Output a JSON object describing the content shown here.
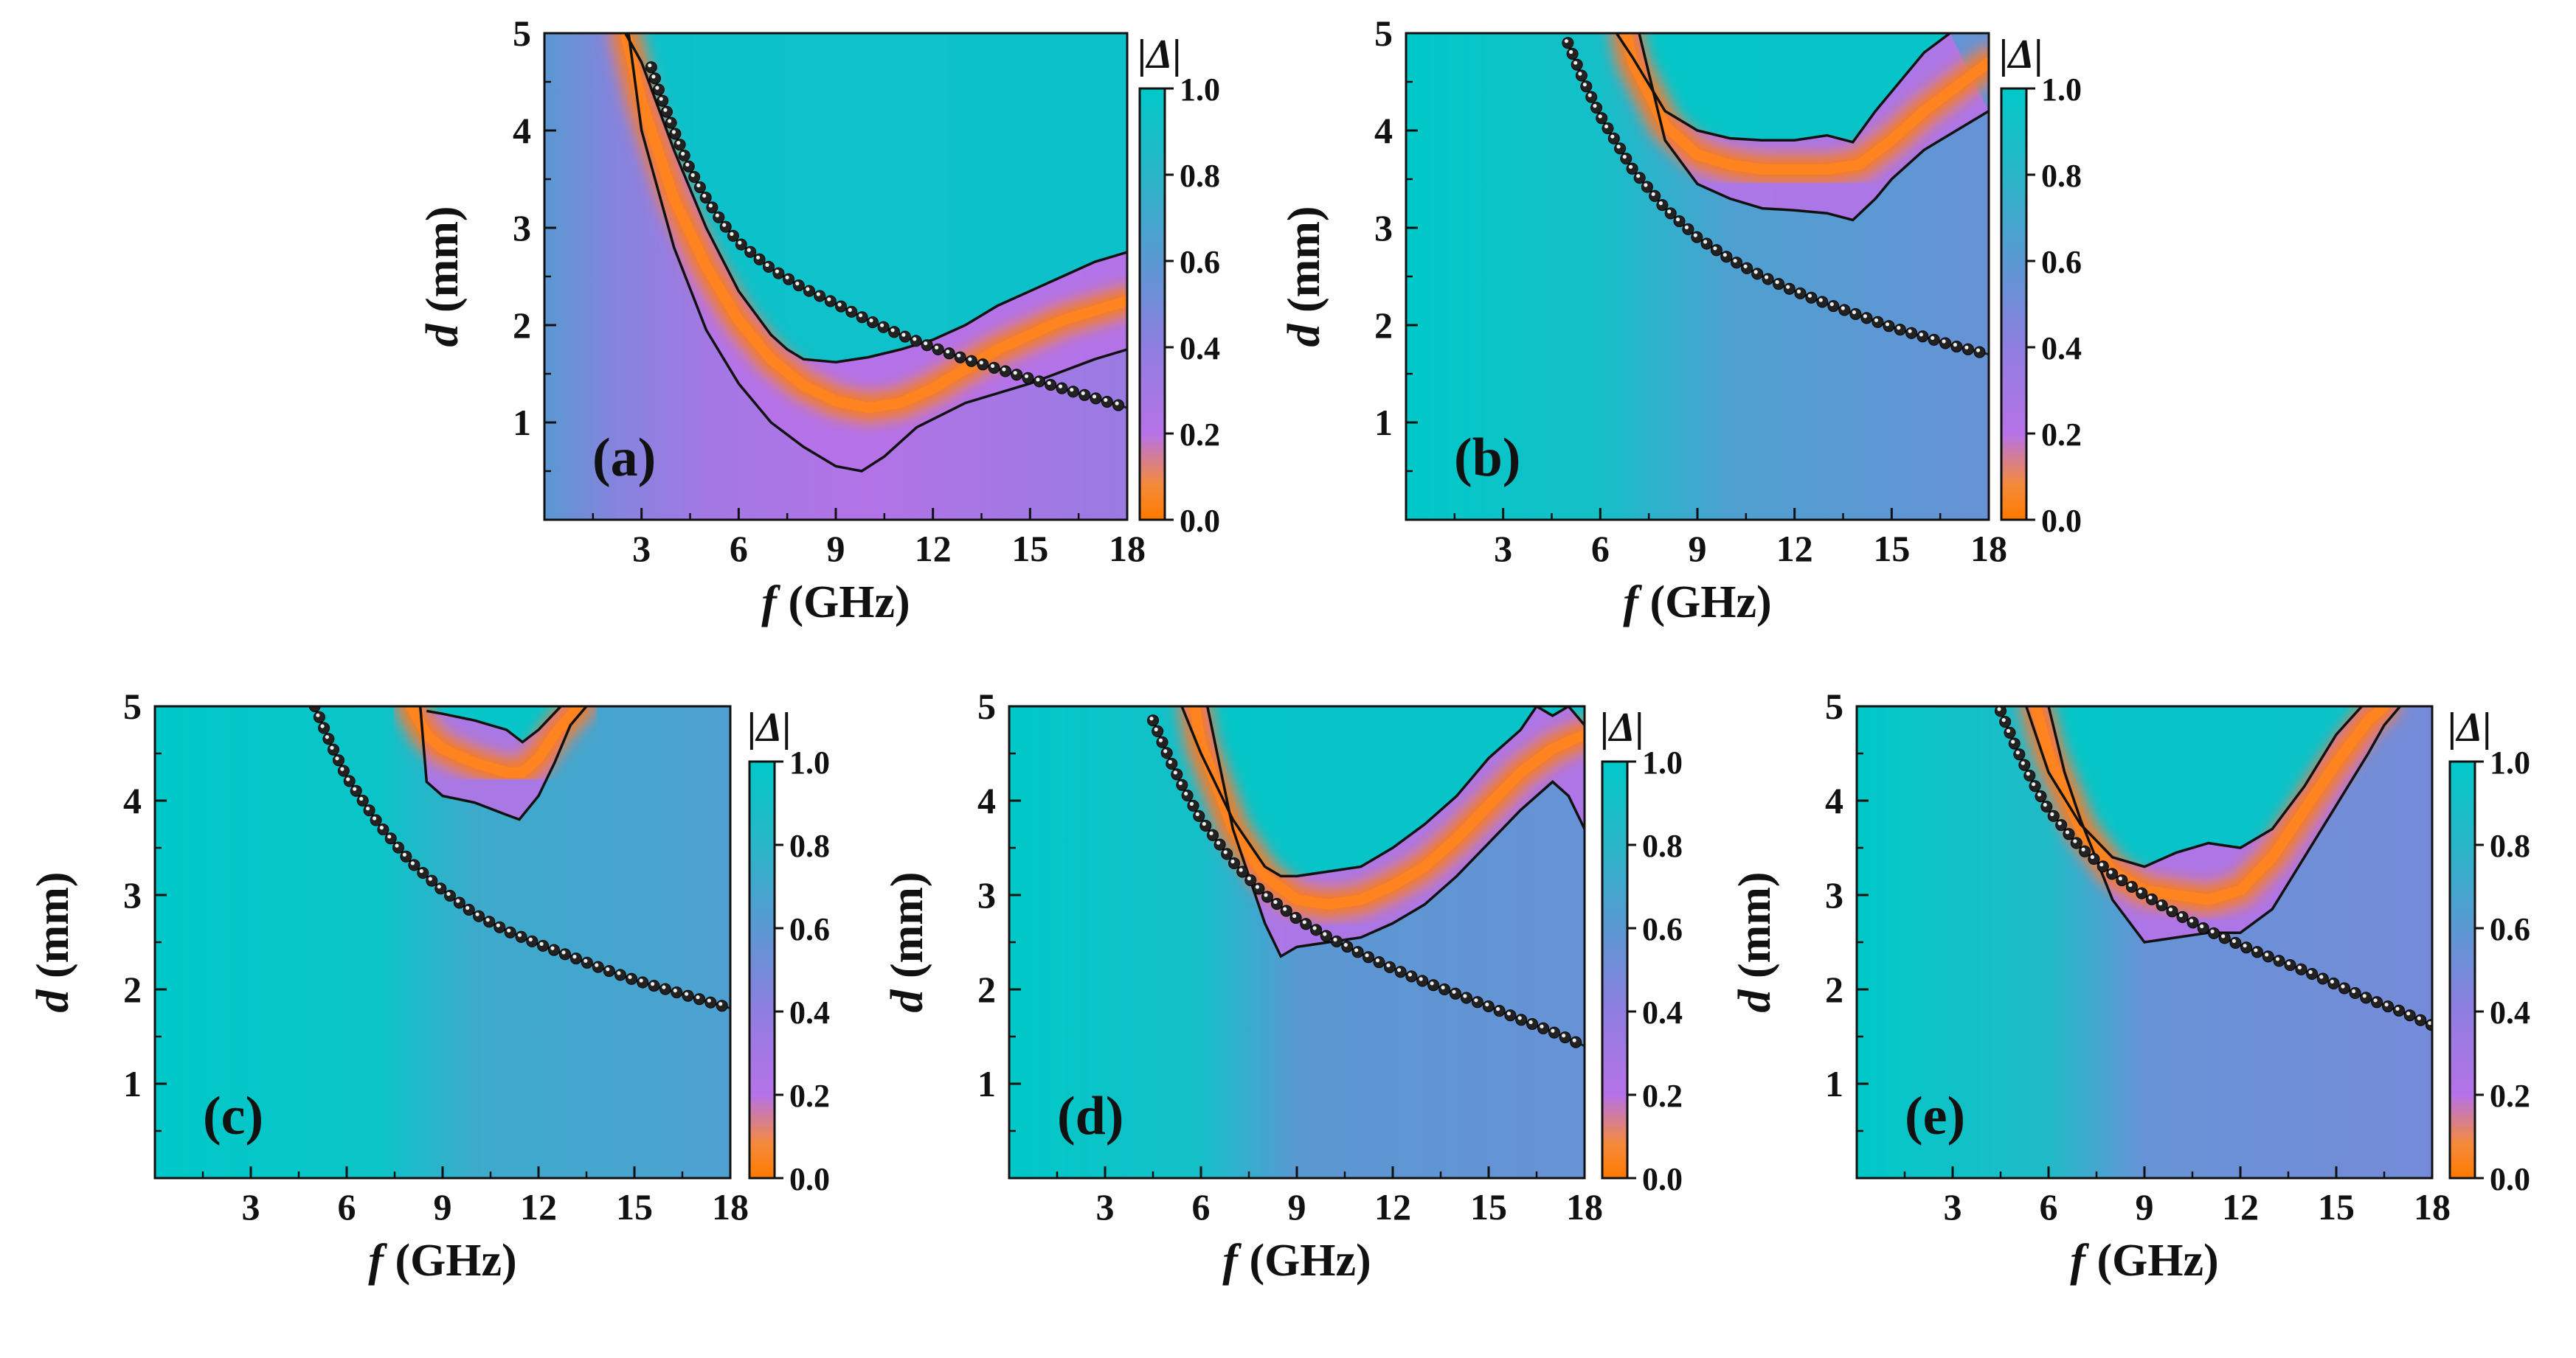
{
  "colormap": {
    "stops": [
      {
        "value": 0.0,
        "color": "#ff7a00"
      },
      {
        "value": 0.08,
        "color": "#f58a3a"
      },
      {
        "value": 0.2,
        "color": "#b672e8"
      },
      {
        "value": 0.4,
        "color": "#8f7ee0"
      },
      {
        "value": 0.6,
        "color": "#5a98d2"
      },
      {
        "value": 0.8,
        "color": "#2ab6c8"
      },
      {
        "value": 1.0,
        "color": "#00c8c8"
      }
    ],
    "contour_color": "#111111",
    "marker_color": "#222222"
  },
  "chart_data": [
    {
      "type": "heatmap",
      "label": "(a)",
      "xlabel_var": "f",
      "xlabel_unit": " (GHz)",
      "ylabel_var": "d",
      "ylabel_unit": " (mm)",
      "xlim": [
        0,
        18
      ],
      "ylim": [
        0,
        5
      ],
      "xticks": [
        "3",
        "6",
        "9",
        "12",
        "15",
        "18"
      ],
      "yticks": [
        "1",
        "2",
        "3",
        "4",
        "5"
      ],
      "colorbar": {
        "title": "|Δ|",
        "ticks": [
          "0.0",
          "0.2",
          "0.4",
          "0.6",
          "0.8",
          "1.0"
        ]
      },
      "min_curve": {
        "f": [
          2.5,
          3,
          4,
          5,
          6,
          7,
          8,
          9,
          10,
          11,
          12,
          13,
          14,
          15,
          16,
          17,
          18
        ],
        "d": [
          5.0,
          4.3,
          3.3,
          2.6,
          2.05,
          1.65,
          1.38,
          1.22,
          1.15,
          1.2,
          1.35,
          1.55,
          1.75,
          1.9,
          2.05,
          2.15,
          2.25
        ]
      },
      "contour_lower": {
        "f": [
          2.6,
          3,
          4,
          5,
          6,
          7,
          8,
          9,
          9.8,
          10.5,
          11.5,
          13,
          15,
          17,
          18
        ],
        "d": [
          5.0,
          4.0,
          2.8,
          1.95,
          1.4,
          1.0,
          0.75,
          0.55,
          0.5,
          0.65,
          0.95,
          1.2,
          1.4,
          1.65,
          1.75
        ]
      },
      "contour_upper": {
        "f": [
          2.5,
          3,
          4,
          5,
          6,
          7,
          7.5,
          8,
          9,
          10,
          11,
          12,
          13,
          14,
          15,
          16,
          17,
          18
        ],
        "d": [
          5.0,
          4.7,
          3.8,
          3.0,
          2.35,
          1.9,
          1.75,
          1.65,
          1.62,
          1.67,
          1.75,
          1.85,
          2.0,
          2.2,
          2.35,
          2.5,
          2.65,
          2.75
        ]
      },
      "matching_curve": {
        "f": [
          3.3,
          3.6,
          4,
          4.5,
          5,
          5.5,
          6,
          7,
          8,
          9,
          10,
          11,
          12,
          13,
          14,
          15,
          16,
          17,
          18
        ],
        "d": [
          4.65,
          4.35,
          4.0,
          3.6,
          3.3,
          3.05,
          2.85,
          2.58,
          2.38,
          2.22,
          2.05,
          1.9,
          1.77,
          1.65,
          1.55,
          1.45,
          1.35,
          1.25,
          1.15
        ]
      },
      "background": [
        {
          "f": 0,
          "value": 0.6
        },
        {
          "f": 2,
          "value": 0.45
        },
        {
          "f": 5,
          "value": 0.3
        },
        {
          "f": 10,
          "value": 0.22
        },
        {
          "f": 18,
          "value": 0.35
        }
      ],
      "upper_region_value": 1.0
    },
    {
      "type": "heatmap",
      "label": "(b)",
      "xlabel_var": "f",
      "xlabel_unit": " (GHz)",
      "ylabel_var": "d",
      "ylabel_unit": " (mm)",
      "xlim": [
        0,
        18
      ],
      "ylim": [
        0,
        5
      ],
      "xticks": [
        "3",
        "6",
        "9",
        "12",
        "15",
        "18"
      ],
      "yticks": [
        "1",
        "2",
        "3",
        "4",
        "5"
      ],
      "colorbar": {
        "title": "|Δ|",
        "ticks": [
          "0.0",
          "0.2",
          "0.4",
          "0.6",
          "0.8",
          "1.0"
        ]
      },
      "min_curve": {
        "f": [
          6.8,
          7,
          8,
          9,
          10,
          11,
          12,
          13,
          14,
          15,
          16,
          17,
          18
        ],
        "d": [
          5.0,
          4.7,
          4.05,
          3.75,
          3.65,
          3.6,
          3.6,
          3.6,
          3.65,
          3.9,
          4.2,
          4.45,
          4.7
        ]
      },
      "contour_lower": {
        "f": [
          7.2,
          8,
          9,
          10,
          11,
          12,
          13,
          13.8,
          14.5,
          15,
          16,
          17,
          18
        ],
        "d": [
          5.0,
          3.9,
          3.45,
          3.3,
          3.2,
          3.18,
          3.15,
          3.08,
          3.3,
          3.5,
          3.8,
          4.0,
          4.2
        ]
      },
      "contour_upper": {
        "f": [
          6.5,
          7,
          8,
          9,
          10,
          11,
          12,
          13,
          13.8,
          14.5,
          15,
          16,
          16.8
        ],
        "d": [
          5.0,
          4.75,
          4.2,
          4.0,
          3.92,
          3.9,
          3.9,
          3.95,
          3.88,
          4.2,
          4.4,
          4.8,
          5.0
        ]
      },
      "matching_curve": {
        "f": [
          5,
          5.5,
          6,
          7,
          8,
          9,
          10,
          11,
          12,
          13,
          14,
          15,
          16,
          17,
          18
        ],
        "d": [
          4.9,
          4.5,
          4.15,
          3.6,
          3.2,
          2.9,
          2.68,
          2.5,
          2.35,
          2.22,
          2.1,
          1.98,
          1.88,
          1.78,
          1.7
        ]
      },
      "background": [
        {
          "f": 0,
          "value": 1.0
        },
        {
          "f": 6,
          "value": 0.9
        },
        {
          "f": 10,
          "value": 0.65
        },
        {
          "f": 18,
          "value": 0.55
        }
      ],
      "upper_region_value": 1.0
    },
    {
      "type": "heatmap",
      "label": "(c)",
      "xlabel_var": "f",
      "xlabel_unit": " (GHz)",
      "ylabel_var": "d",
      "ylabel_unit": " (mm)",
      "xlim": [
        0,
        18
      ],
      "ylim": [
        0,
        5
      ],
      "xticks": [
        "3",
        "6",
        "9",
        "12",
        "15",
        "18"
      ],
      "yticks": [
        "1",
        "2",
        "3",
        "4",
        "5"
      ],
      "colorbar": {
        "title": "|Δ|",
        "ticks": [
          "0.0",
          "0.2",
          "0.4",
          "0.6",
          "0.8",
          "1.0"
        ]
      },
      "min_curve": {
        "f": [
          8,
          8.5,
          9,
          10,
          11,
          11.5,
          12,
          12.5,
          13,
          13.3
        ],
        "d": [
          5.0,
          4.7,
          4.55,
          4.4,
          4.3,
          4.3,
          4.45,
          4.7,
          4.9,
          5.0
        ]
      },
      "contour_lower": {
        "f": [
          8.3,
          8.5,
          9,
          10,
          11,
          11.4,
          12,
          12.5,
          13,
          13.5
        ],
        "d": [
          5.0,
          4.2,
          4.05,
          3.98,
          3.85,
          3.8,
          4.05,
          4.4,
          4.8,
          5.0
        ]
      },
      "contour_upper": {
        "f": [
          8.5,
          9,
          10,
          11,
          11.5,
          12,
          12.7
        ],
        "d": [
          4.95,
          4.92,
          4.85,
          4.75,
          4.62,
          4.75,
          5.0
        ]
      },
      "matching_curve": {
        "f": [
          5,
          5.5,
          6,
          7,
          8,
          9,
          10,
          11,
          12,
          13,
          14,
          15,
          16,
          17,
          18
        ],
        "d": [
          5.0,
          4.6,
          4.25,
          3.75,
          3.35,
          3.05,
          2.8,
          2.62,
          2.48,
          2.35,
          2.22,
          2.1,
          2.0,
          1.9,
          1.8
        ]
      },
      "background": [
        {
          "f": 0,
          "value": 1.0
        },
        {
          "f": 7,
          "value": 0.95
        },
        {
          "f": 10,
          "value": 0.72
        },
        {
          "f": 18,
          "value": 0.65
        }
      ],
      "upper_region_value": 1.0
    },
    {
      "type": "heatmap",
      "label": "(d)",
      "xlabel_var": "f",
      "xlabel_unit": " (GHz)",
      "ylabel_var": "d",
      "ylabel_unit": " (mm)",
      "xlim": [
        0,
        18
      ],
      "ylim": [
        0,
        5
      ],
      "xticks": [
        "3",
        "6",
        "9",
        "12",
        "15",
        "18"
      ],
      "yticks": [
        "1",
        "2",
        "3",
        "4",
        "5"
      ],
      "colorbar": {
        "title": "|Δ|",
        "ticks": [
          "0.0",
          "0.2",
          "0.4",
          "0.6",
          "0.8",
          "1.0"
        ]
      },
      "min_curve": {
        "f": [
          5.8,
          6,
          7,
          8,
          9,
          10,
          11,
          12,
          13,
          14,
          15,
          16,
          17,
          18
        ],
        "d": [
          5.0,
          4.6,
          3.7,
          3.2,
          2.95,
          2.9,
          2.95,
          3.1,
          3.3,
          3.6,
          3.95,
          4.3,
          4.55,
          4.7
        ]
      },
      "contour_lower": {
        "f": [
          6.2,
          7,
          8,
          8.5,
          9,
          10,
          11,
          12,
          13,
          14,
          15,
          16,
          17,
          17.5,
          18
        ],
        "d": [
          5.0,
          3.7,
          2.7,
          2.35,
          2.45,
          2.5,
          2.55,
          2.7,
          2.9,
          3.2,
          3.55,
          3.9,
          4.2,
          4.05,
          3.7
        ]
      },
      "contour_upper": {
        "f": [
          5.4,
          6,
          7,
          8,
          8.5,
          9,
          10,
          11,
          12,
          13,
          14,
          15,
          16,
          16.5,
          17,
          17.5,
          18
        ],
        "d": [
          5.0,
          4.5,
          3.8,
          3.3,
          3.2,
          3.2,
          3.25,
          3.3,
          3.5,
          3.75,
          4.05,
          4.45,
          4.75,
          5.0,
          4.9,
          5.0,
          4.8
        ]
      },
      "matching_curve": {
        "f": [
          4.5,
          5,
          5.5,
          6,
          7,
          8,
          9,
          10,
          11,
          12,
          13,
          14,
          15,
          16,
          17,
          18
        ],
        "d": [
          4.85,
          4.45,
          4.1,
          3.8,
          3.35,
          3.0,
          2.75,
          2.55,
          2.38,
          2.22,
          2.08,
          1.95,
          1.82,
          1.68,
          1.55,
          1.4
        ]
      },
      "background": [
        {
          "f": 0,
          "value": 1.0
        },
        {
          "f": 6,
          "value": 0.9
        },
        {
          "f": 9,
          "value": 0.6
        },
        {
          "f": 18,
          "value": 0.55
        }
      ],
      "upper_region_value": 1.0
    },
    {
      "type": "heatmap",
      "label": "(e)",
      "xlabel_var": "f",
      "xlabel_unit": " (GHz)",
      "ylabel_var": "d",
      "ylabel_unit": " (mm)",
      "xlim": [
        0,
        18
      ],
      "ylim": [
        0,
        5
      ],
      "xticks": [
        "3",
        "6",
        "9",
        "12",
        "15",
        "18"
      ],
      "yticks": [
        "1",
        "2",
        "3",
        "4",
        "5"
      ],
      "colorbar": {
        "title": "|Δ|",
        "ticks": [
          "0.0",
          "0.2",
          "0.4",
          "0.6",
          "0.8",
          "1.0"
        ]
      },
      "min_curve": {
        "f": [
          5.6,
          6,
          7,
          8,
          9,
          10,
          11,
          12,
          13,
          14,
          15,
          16,
          16.5
        ],
        "d": [
          5.0,
          4.5,
          3.7,
          3.25,
          3.05,
          3.0,
          2.95,
          3.05,
          3.4,
          3.9,
          4.4,
          4.85,
          5.0
        ]
      },
      "contour_lower": {
        "f": [
          6,
          6.5,
          7,
          8,
          9,
          10,
          11,
          12,
          13,
          14,
          15,
          16,
          16.5,
          17
        ],
        "d": [
          5.0,
          4.3,
          3.8,
          2.95,
          2.5,
          2.55,
          2.6,
          2.6,
          2.85,
          3.4,
          3.95,
          4.5,
          4.8,
          5.0
        ]
      },
      "contour_upper": {
        "f": [
          5.3,
          6,
          7,
          8,
          8.5,
          9,
          10,
          11,
          12,
          13,
          14,
          15,
          15.8
        ],
        "d": [
          5.0,
          4.3,
          3.75,
          3.4,
          3.35,
          3.3,
          3.45,
          3.55,
          3.5,
          3.7,
          4.15,
          4.7,
          5.0
        ]
      },
      "matching_curve": {
        "f": [
          4.5,
          5,
          5.5,
          6,
          7,
          8,
          9,
          10,
          11,
          12,
          13,
          14,
          15,
          16,
          17,
          18
        ],
        "d": [
          4.95,
          4.55,
          4.2,
          3.9,
          3.5,
          3.22,
          3.0,
          2.8,
          2.62,
          2.47,
          2.33,
          2.2,
          2.05,
          1.9,
          1.77,
          1.62
        ]
      },
      "background": [
        {
          "f": 0,
          "value": 1.0
        },
        {
          "f": 6,
          "value": 0.85
        },
        {
          "f": 9,
          "value": 0.55
        },
        {
          "f": 18,
          "value": 0.5
        }
      ],
      "upper_region_value": 1.0
    }
  ]
}
